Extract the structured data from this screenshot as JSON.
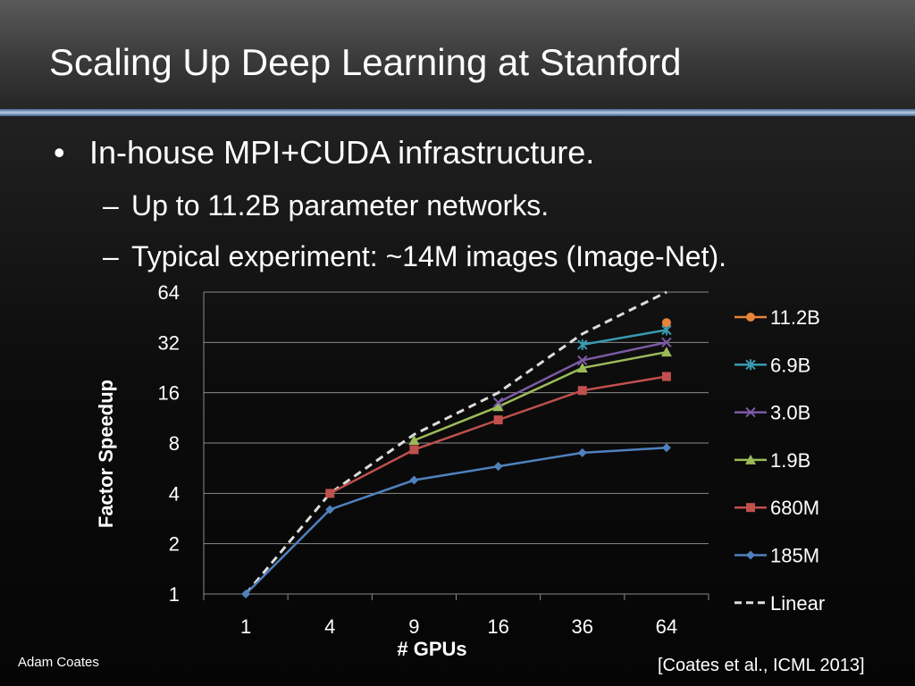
{
  "slide": {
    "title": "Scaling Up Deep Learning at Stanford",
    "bullets": {
      "main": "In-house MPI+CUDA infrastructure.",
      "sub": [
        "Up to 11.2B parameter networks.",
        "Typical experiment: ~14M images (Image-Net)."
      ]
    },
    "footer_author": "Adam Coates",
    "footer_citation": "[Coates et al., ICML 2013]"
  },
  "chart_data": {
    "type": "line",
    "title": "",
    "xlabel": "# GPUs",
    "ylabel": "Factor Speedup",
    "categories": [
      "1",
      "4",
      "9",
      "16",
      "36",
      "64"
    ],
    "y_scale": "log2",
    "yticks": [
      "1",
      "2",
      "4",
      "8",
      "16",
      "32",
      "64"
    ],
    "ylim": [
      1,
      64
    ],
    "grid": "horizontal",
    "legend_position": "right",
    "series": [
      {
        "name": "11.2B",
        "color": "#e8843a",
        "marker": "circle",
        "dash": false,
        "values": [
          null,
          null,
          null,
          null,
          null,
          42
        ]
      },
      {
        "name": "6.9B",
        "color": "#3a9ab0",
        "marker": "star",
        "dash": false,
        "values": [
          null,
          null,
          null,
          null,
          31,
          38
        ]
      },
      {
        "name": "3.0B",
        "color": "#7d5aa6",
        "marker": "x",
        "dash": false,
        "values": [
          null,
          null,
          null,
          14,
          25,
          32
        ]
      },
      {
        "name": "1.9B",
        "color": "#9bbb59",
        "marker": "triangle",
        "dash": false,
        "values": [
          null,
          null,
          8.3,
          13.2,
          22.5,
          28
        ]
      },
      {
        "name": "680M",
        "color": "#c0504d",
        "marker": "square",
        "dash": false,
        "values": [
          null,
          4,
          7.3,
          11,
          16.5,
          20
        ]
      },
      {
        "name": "185M",
        "color": "#4f81bd",
        "marker": "diamond",
        "dash": false,
        "values": [
          1,
          3.2,
          4.8,
          5.8,
          7,
          7.5
        ]
      },
      {
        "name": "Linear",
        "color": "#dddddd",
        "marker": "none",
        "dash": true,
        "values": [
          1,
          4,
          9,
          16,
          36,
          64
        ]
      }
    ]
  }
}
